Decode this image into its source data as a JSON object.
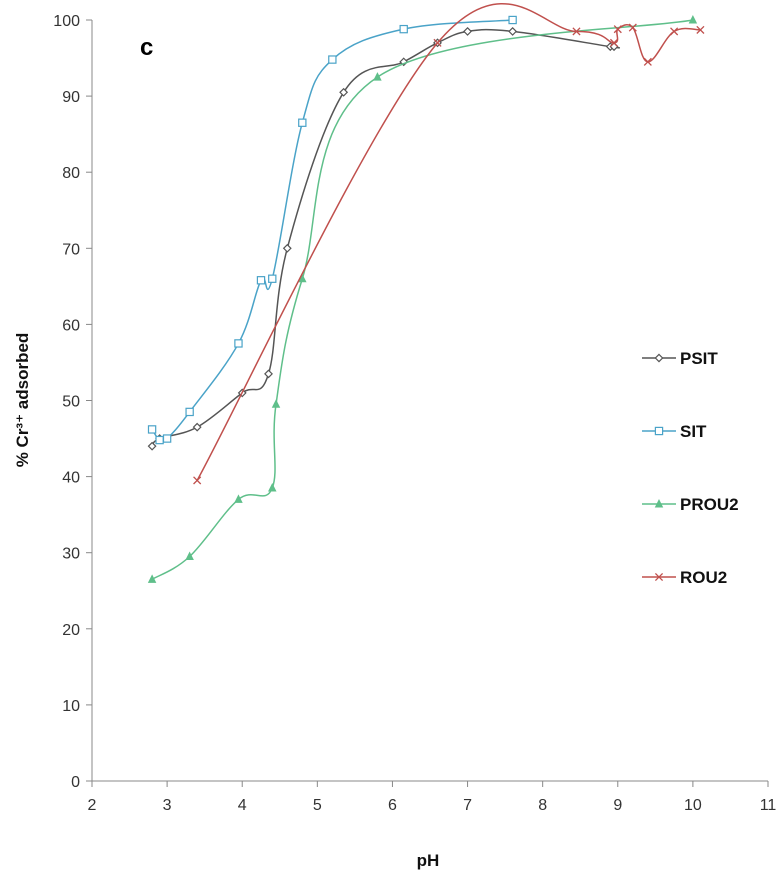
{
  "chart_data": {
    "type": "line",
    "panel_label": "c",
    "xlabel": "pH",
    "ylabel": "% Cr³⁺ adsorbed",
    "xlim": [
      2,
      11
    ],
    "ylim": [
      0,
      100
    ],
    "x_ticks": [
      2,
      3,
      4,
      5,
      6,
      7,
      8,
      9,
      10,
      11
    ],
    "y_ticks": [
      0,
      10,
      20,
      30,
      40,
      50,
      60,
      70,
      80,
      90,
      100
    ],
    "grid": false,
    "legend": {
      "placement": "right"
    },
    "series": [
      {
        "name": "PSIT",
        "color": "#555555",
        "marker": "diamond",
        "points": [
          [
            2.8,
            44
          ],
          [
            2.9,
            45
          ],
          [
            3.4,
            46.5
          ],
          [
            4.0,
            51
          ],
          [
            4.35,
            53.5
          ],
          [
            4.6,
            70
          ],
          [
            5.35,
            90.5
          ],
          [
            6.15,
            94.5
          ],
          [
            6.6,
            97
          ],
          [
            7.0,
            98.5
          ],
          [
            7.6,
            98.5
          ],
          [
            8.9,
            96.5
          ],
          [
            8.95,
            96.5
          ]
        ]
      },
      {
        "name": "SIT",
        "color": "#4aa3c8",
        "marker": "square",
        "points": [
          [
            2.8,
            46.2
          ],
          [
            2.9,
            44.8
          ],
          [
            3.0,
            45
          ],
          [
            3.3,
            48.5
          ],
          [
            3.95,
            57.5
          ],
          [
            4.25,
            65.8
          ],
          [
            4.4,
            66
          ],
          [
            4.8,
            86.5
          ],
          [
            5.2,
            94.8
          ],
          [
            6.15,
            98.8
          ],
          [
            7.6,
            100
          ]
        ]
      },
      {
        "name": "PROU2",
        "color": "#5fbf8a",
        "marker": "triangle",
        "points": [
          [
            2.8,
            26.5
          ],
          [
            3.3,
            29.5
          ],
          [
            3.95,
            37
          ],
          [
            4.4,
            38.5
          ],
          [
            4.45,
            49.5
          ],
          [
            4.8,
            66
          ],
          [
            5.8,
            92.5
          ],
          [
            10.0,
            100
          ]
        ]
      },
      {
        "name": "ROU2",
        "color": "#c0504d",
        "marker": "x",
        "points": [
          [
            3.4,
            39.5
          ],
          [
            6.6,
            97
          ],
          [
            8.45,
            98.5
          ],
          [
            8.95,
            97
          ],
          [
            9.0,
            98.8
          ],
          [
            9.2,
            99
          ],
          [
            9.4,
            94.5
          ],
          [
            9.75,
            98.5
          ],
          [
            10.1,
            98.7
          ]
        ]
      }
    ]
  }
}
